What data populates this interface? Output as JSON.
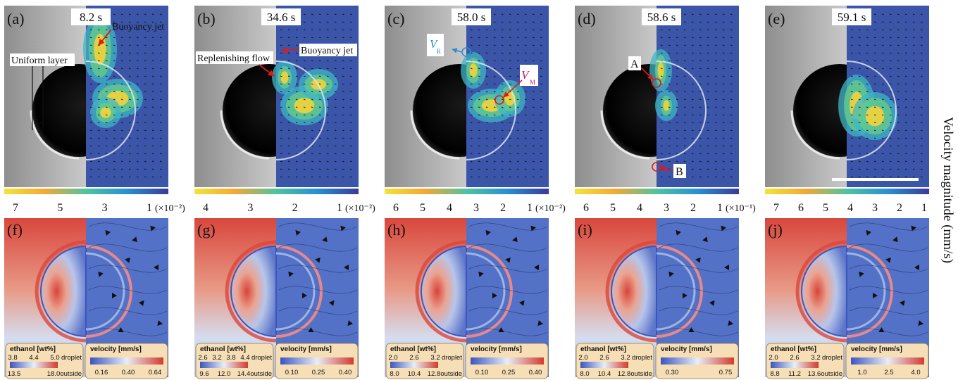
{
  "figure": {
    "side_label": "Velocity magnitude (mm/s)",
    "top_panels": [
      {
        "label": "(a)",
        "time": "8.2 s",
        "annotations": [
          "Buoyancy jet",
          "Uniform layer"
        ],
        "ticks": [
          "7",
          "5",
          "3",
          "1"
        ],
        "unit": "(×10⁻²)"
      },
      {
        "label": "(b)",
        "time": "34.6 s",
        "annotations": [
          "Replenishing flow",
          "Buoyancy jet"
        ],
        "ticks": [
          "4",
          "3",
          "2",
          "1"
        ],
        "unit": "(×10⁻²)"
      },
      {
        "label": "(c)",
        "time": "58.0 s",
        "annotations": [
          "V",
          "R",
          "V",
          "M"
        ],
        "ticks": [
          "6",
          "5",
          "4",
          "3",
          "2",
          "1"
        ],
        "unit": "(×10⁻²)"
      },
      {
        "label": "(d)",
        "time": "58.6 s",
        "annotations": [
          "A",
          "B"
        ],
        "ticks": [
          "6",
          "5",
          "4",
          "3",
          "2",
          "1"
        ],
        "unit": "(×10⁻¹)"
      },
      {
        "label": "(e)",
        "time": "59.1 s",
        "annotations": [],
        "ticks": [
          "7",
          "6",
          "5",
          "4",
          "3",
          "2",
          "1"
        ],
        "unit": ""
      }
    ],
    "bottom_panels": [
      {
        "label": "(f)",
        "ethanol_title": "ethanol [wt%]",
        "ethanol_top": [
          "3.8",
          "4.4",
          "5.0"
        ],
        "ethanol_bottom": [
          "13.5",
          "18.0"
        ],
        "droplet": "droplet",
        "outside": "outside",
        "velocity_title": "velocity [mm/s]",
        "velocity_ticks": [
          "0.16",
          "0.40",
          "0.64"
        ]
      },
      {
        "label": "(g)",
        "ethanol_title": "ethanol [wt%]",
        "ethanol_top": [
          "2.6",
          "3.2",
          "3.8",
          "4.4"
        ],
        "ethanol_bottom": [
          "9.6",
          "12.0",
          "14.4"
        ],
        "droplet": "droplet",
        "outside": "outside",
        "velocity_title": "velocity [mm/s]",
        "velocity_ticks": [
          "0.10",
          "0.25",
          "0.40"
        ]
      },
      {
        "label": "(h)",
        "ethanol_title": "ethanol [wt%]",
        "ethanol_top": [
          "2.0",
          "2.6",
          "3.2"
        ],
        "ethanol_bottom": [
          "8.0",
          "10.4",
          "12.8"
        ],
        "droplet": "droplet",
        "outside": "outside",
        "velocity_title": "velocity [mm/s]",
        "velocity_ticks": [
          "0.10",
          "0.25",
          "0.40"
        ]
      },
      {
        "label": "(i)",
        "ethanol_title": "ethanol [wt%]",
        "ethanol_top": [
          "2.0",
          "2.6",
          "3.2"
        ],
        "ethanol_bottom": [
          "8.0",
          "10.4",
          "12.8"
        ],
        "droplet": "droplet",
        "outside": "outside",
        "velocity_title": "velocity [mm/s]",
        "velocity_ticks": [
          "0.30",
          "0.75"
        ]
      },
      {
        "label": "(j)",
        "ethanol_title": "ethanol [wt%]",
        "ethanol_top": [
          "2.0",
          "2.6",
          "3.2"
        ],
        "ethanol_bottom": [
          "8.8",
          "11.2",
          "13.6"
        ],
        "droplet": "droplet",
        "outside": "outside",
        "velocity_title": "velocity [mm/s]",
        "velocity_ticks": [
          "1.0",
          "2.5",
          "4.0"
        ]
      }
    ],
    "colors": {
      "piv_background": "#3b55a8",
      "photo_background": "#c4c4c4",
      "ethanol_high": "#d9473d",
      "cream": "#f6dfb6"
    }
  }
}
